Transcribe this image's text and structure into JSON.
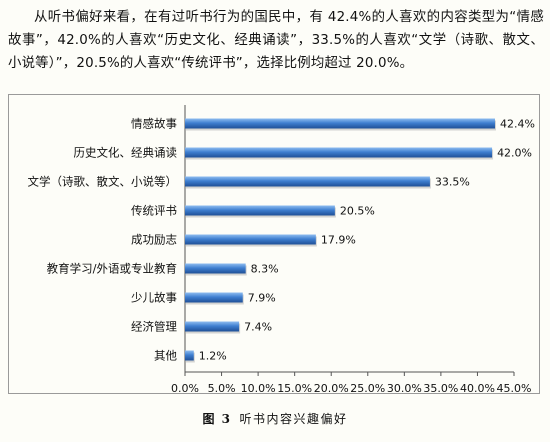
{
  "paragraph": "从听书偏好来看，在有过听书行为的国民中，有 42.4%的人喜欢的内容类型为“情感故事”，42.0%的人喜欢“历史文化、经典诵读”，33.5%的人喜欢“文学（诗歌、散文、小说等）”，20.5%的人喜欢“传统评书”，选择比例均超过 20.0%。",
  "figure": {
    "label": "图 3",
    "title": "听书内容兴趣偏好"
  },
  "chart_data": {
    "type": "bar",
    "orientation": "horizontal",
    "categories": [
      "情感故事",
      "历史文化、经典诵读",
      "文学（诗歌、散文、小说等）",
      "传统评书",
      "成功励志",
      "教育学习/外语或专业教育",
      "少儿故事",
      "经济管理",
      "其他"
    ],
    "values": [
      42.4,
      42.0,
      33.5,
      20.5,
      17.9,
      8.3,
      7.9,
      7.4,
      1.2
    ],
    "value_labels": [
      "42.4%",
      "42.0%",
      "33.5%",
      "20.5%",
      "17.9%",
      "8.3%",
      "7.9%",
      "7.4%",
      "1.2%"
    ],
    "xlim": [
      0,
      45
    ],
    "xticks": [
      "0.0%",
      "5.0%",
      "10.0%",
      "15.0%",
      "20.0%",
      "25.0%",
      "30.0%",
      "35.0%",
      "40.0%",
      "45.0%"
    ],
    "grid": false,
    "legend": "none",
    "bar_color": "#3f7fd0",
    "bar_highlight_color": "#8fbdf0",
    "bar_shadow_color": "#1f4f96"
  }
}
